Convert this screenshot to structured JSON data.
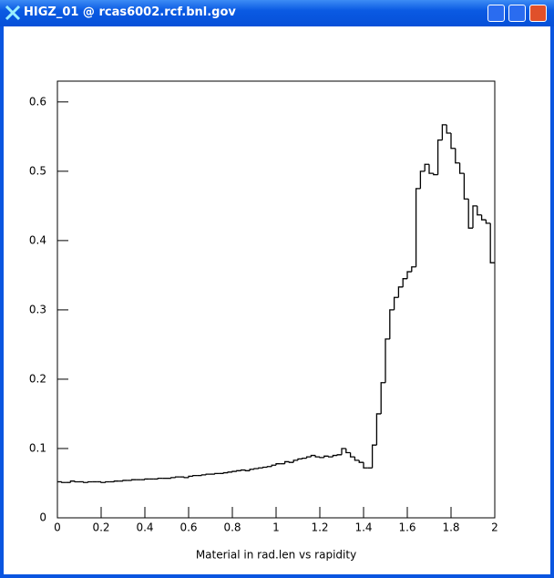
{
  "window": {
    "title": "HIGZ_01 @ rcas6002.rcf.bnl.gov"
  },
  "chart_data": {
    "type": "histogram",
    "x_label": "Material in rad.len vs rapidity",
    "bins": [
      0,
      0.02,
      0.04,
      0.06,
      0.08,
      0.1,
      0.12,
      0.14,
      0.16,
      0.18,
      0.2,
      0.22,
      0.24,
      0.26,
      0.28,
      0.3,
      0.32,
      0.34,
      0.36,
      0.38,
      0.4,
      0.42,
      0.44,
      0.46,
      0.48,
      0.5,
      0.52,
      0.54,
      0.56,
      0.58,
      0.6,
      0.62,
      0.64,
      0.66,
      0.68,
      0.7,
      0.72,
      0.74,
      0.76,
      0.78,
      0.8,
      0.82,
      0.84,
      0.86,
      0.88,
      0.9,
      0.92,
      0.94,
      0.96,
      0.98,
      1,
      1.02,
      1.04,
      1.06,
      1.08,
      1.1,
      1.12,
      1.14,
      1.16,
      1.18,
      1.2,
      1.22,
      1.24,
      1.26,
      1.28,
      1.3,
      1.32,
      1.34,
      1.36,
      1.38,
      1.4,
      1.42,
      1.44,
      1.46,
      1.48,
      1.5,
      1.52,
      1.54,
      1.56,
      1.58,
      1.6,
      1.62,
      1.64,
      1.66,
      1.68,
      1.7,
      1.72,
      1.74,
      1.76,
      1.78,
      1.8,
      1.82,
      1.84,
      1.86,
      1.88,
      1.9,
      1.92,
      1.94,
      1.96,
      1.98,
      2
    ],
    "values": [
      0.052,
      0.051,
      0.051,
      0.053,
      0.052,
      0.052,
      0.051,
      0.052,
      0.052,
      0.052,
      0.051,
      0.052,
      0.052,
      0.053,
      0.053,
      0.054,
      0.054,
      0.055,
      0.055,
      0.055,
      0.056,
      0.056,
      0.056,
      0.057,
      0.057,
      0.057,
      0.058,
      0.059,
      0.059,
      0.058,
      0.06,
      0.061,
      0.061,
      0.062,
      0.063,
      0.063,
      0.064,
      0.064,
      0.065,
      0.066,
      0.067,
      0.068,
      0.069,
      0.068,
      0.07,
      0.071,
      0.072,
      0.073,
      0.074,
      0.076,
      0.078,
      0.078,
      0.081,
      0.08,
      0.083,
      0.085,
      0.086,
      0.088,
      0.09,
      0.088,
      0.087,
      0.089,
      0.088,
      0.09,
      0.091,
      0.1,
      0.094,
      0.088,
      0.083,
      0.08,
      0.072,
      0.072,
      0.105,
      0.15,
      0.195,
      0.258,
      0.3,
      0.318,
      0.333,
      0.345,
      0.355,
      0.362,
      0.475,
      0.5,
      0.51,
      0.497,
      0.495,
      0.545,
      0.567,
      0.555,
      0.533,
      0.512,
      0.497,
      0.46,
      0.418,
      0.45,
      0.437,
      0.43,
      0.425,
      0.368
    ],
    "color": "#000000",
    "xlim": [
      0,
      2
    ],
    "xticks": [
      0,
      0.2,
      0.4,
      0.6,
      0.8,
      1,
      1.2,
      1.4,
      1.6,
      1.8,
      2
    ],
    "ylim": [
      0,
      0.63
    ],
    "yticks": [
      0,
      0.1,
      0.2,
      0.3,
      0.4,
      0.5,
      0.6
    ]
  }
}
